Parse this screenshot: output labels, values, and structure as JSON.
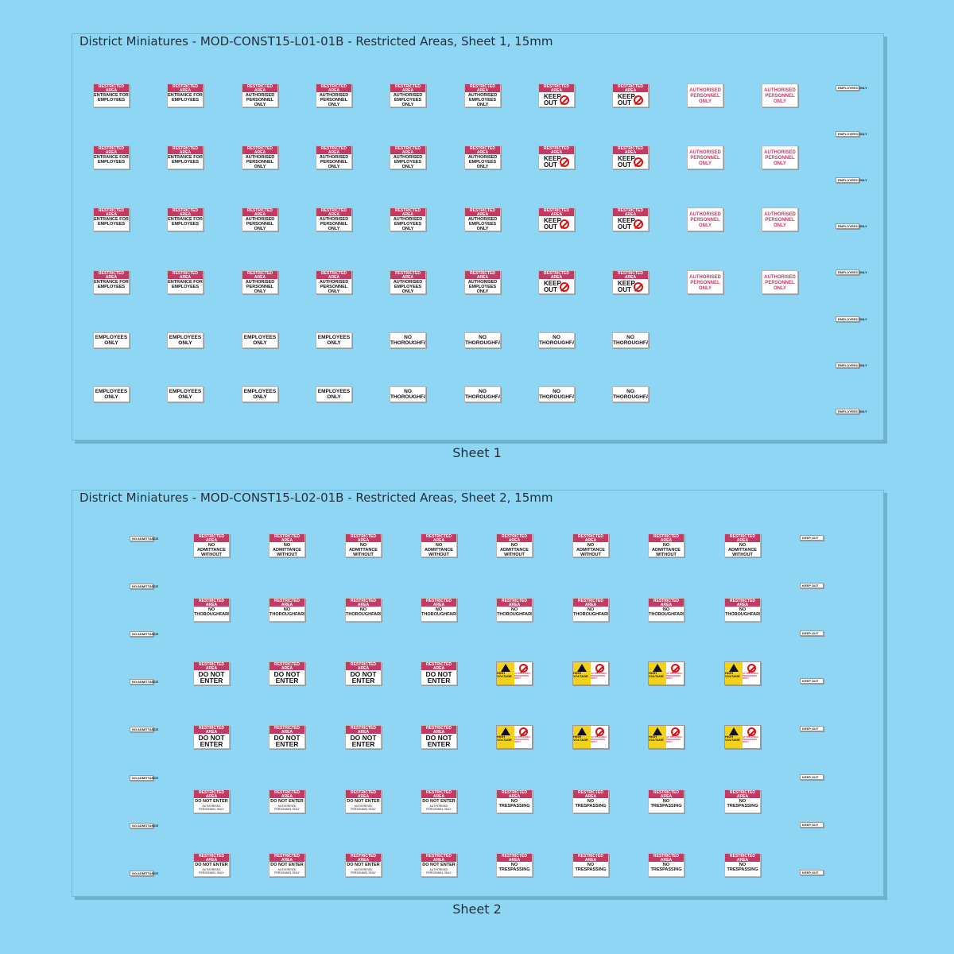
{
  "sheet1": {
    "title": "District Miniatures - MOD-CONST15-L01-01B - Restricted Areas, Sheet 1, 15mm",
    "caption": "Sheet 1"
  },
  "sheet2": {
    "title": "District Miniatures - MOD-CONST15-L02-01B - Restricted Areas, Sheet 2, 15mm",
    "caption": "Sheet 2"
  },
  "signs": {
    "restricted_area": "RESTRICTED AREA",
    "entrance_for_employees": "ENTRANCE FOR EMPLOYEES",
    "authorised_personnel_only": "AUTHORISED PERSONNEL ONLY",
    "authorised_employees_only": "AUTHORISED EMPLOYEES ONLY",
    "keep_out": "KEEP OUT",
    "employees_only": "EMPLOYEES ONLY",
    "no_thoroughfare": "NO THOROUGHFARE",
    "no_admittance_without_authorisation": "NO ADMITTANCE WITHOUT AUTHORISATION",
    "do_not_enter": "DO NOT ENTER",
    "do_not_enter_authorised": "DO NOT ENTER",
    "authorised_personnel_only_small": "AUTHORISED PERSONNEL ONLY",
    "no_trespassing": "NO TRESPASSING",
    "high_voltage": "HIGH VOLTAGE",
    "no_admittance": "NO ADMITTANCE",
    "employees_only_tiny": "EMPLOYEES ONLY",
    "keep_out_tiny": "KEEP OUT"
  },
  "colors": {
    "background": "#8fd6f4",
    "restricted_red": "#c43a63",
    "warning_yellow": "#f3d21f"
  },
  "icons": [
    "no-pedestrian-icon",
    "high-voltage-icon"
  ]
}
